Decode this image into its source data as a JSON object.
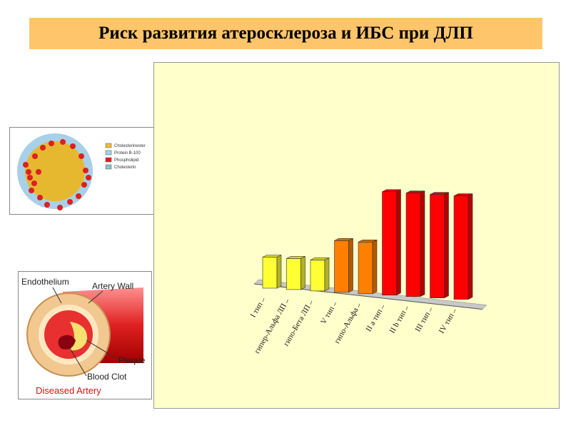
{
  "title": "Риск развития атеросклероза и ИБС при ДЛП",
  "chart_data": {
    "type": "bar",
    "categories": [
      "I тип",
      "гипер-Альфа ЛП",
      "гипо-Бета ЛП",
      "V тип",
      "гипо-Альфа",
      "II а тип",
      "II b тип",
      "III тип",
      "IV тип"
    ],
    "values": [
      3,
      3,
      3,
      5,
      5,
      10,
      10,
      10,
      10
    ],
    "colors": [
      "#ffff33",
      "#ffff33",
      "#ffff33",
      "#ff8000",
      "#ff8000",
      "#ff0000",
      "#ff0000",
      "#ff0000",
      "#ff0000"
    ],
    "grid": false,
    "legend": "none",
    "style": "3d"
  },
  "ldl_figure": {
    "legend": [
      {
        "label": "Cholesterinester",
        "color": "#e8c030"
      },
      {
        "label": "Protein B-100",
        "color": "#a8d0e8"
      },
      {
        "label": "Phospholipid",
        "color": "#dd2020"
      },
      {
        "label": "Cholesterin",
        "color": "#80c8c8"
      }
    ]
  },
  "artery_figure": {
    "labels": {
      "endothelium": "Endothelium",
      "artery_wall": "Artery Wall",
      "plaque": "Plaque",
      "blood_clot": "Blood Clot",
      "title": "Diseased Artery"
    }
  }
}
